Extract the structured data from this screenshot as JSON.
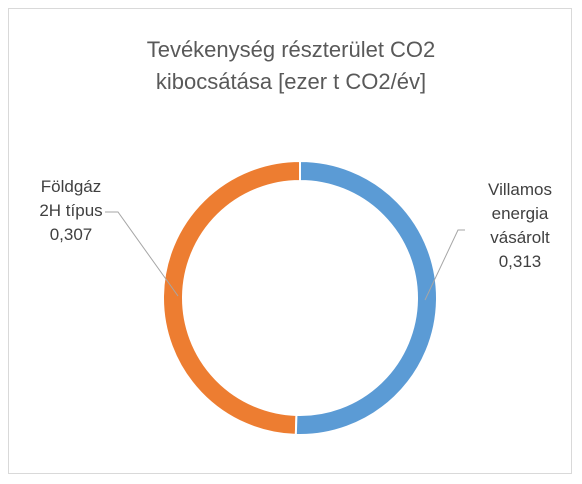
{
  "chart_data": {
    "type": "donut",
    "title": "Tevékenység részterület CO2 kibocsátása [ezer t CO2/év]",
    "categories": [
      "Villamos energia vásárolt",
      "Földgáz 2H típus"
    ],
    "values": [
      0.313,
      0.307
    ],
    "value_labels": [
      "0,313",
      "0,307"
    ],
    "colors": [
      "#5b9bd5",
      "#ed7d31"
    ]
  }
}
